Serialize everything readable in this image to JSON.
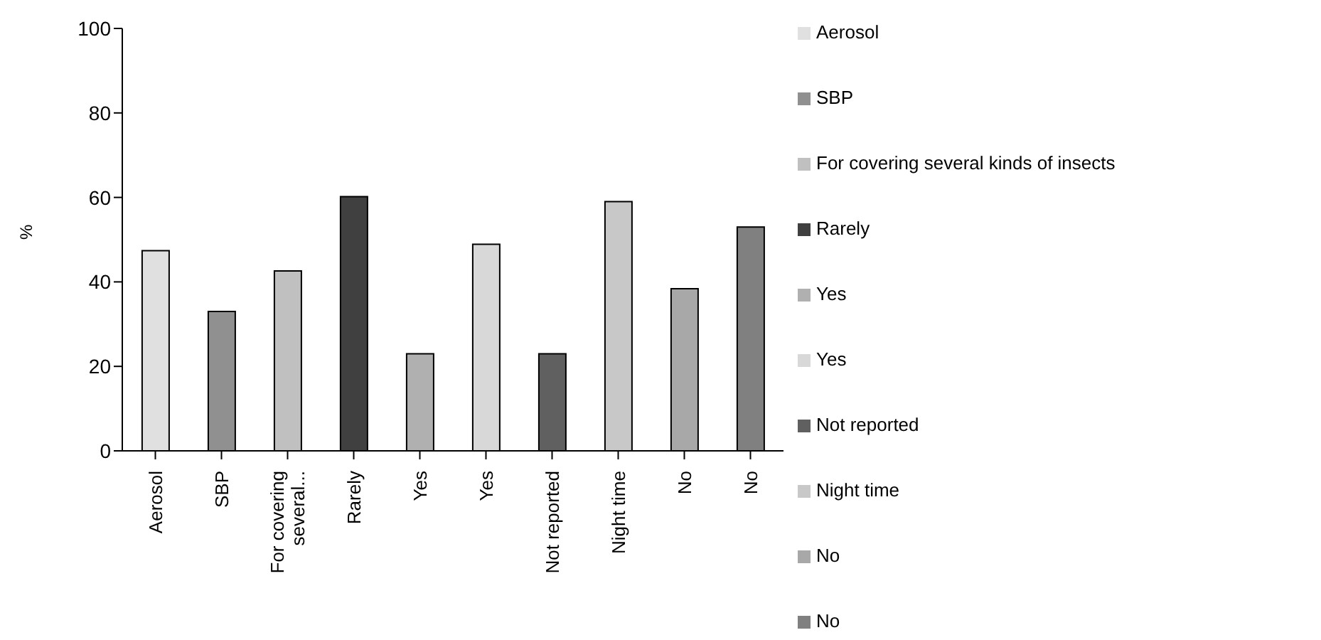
{
  "chart_data": {
    "type": "bar",
    "ylabel": "%",
    "categories": [
      "Aerosol",
      "SBP",
      "For covering several...",
      "Rarely",
      "Yes",
      "Yes",
      "Not reported",
      "Night time",
      "No",
      "No"
    ],
    "series": [
      {
        "name": "Aerosol",
        "color": "#e0e0e0",
        "values": [
          47.4,
          null,
          null,
          null,
          null,
          null,
          null,
          null,
          null,
          null
        ]
      },
      {
        "name": "SBP",
        "color": "#909090",
        "values": [
          null,
          33,
          null,
          null,
          null,
          null,
          null,
          null,
          null,
          null
        ]
      },
      {
        "name": "For covering several kinds of insects",
        "color": "#c0c0c0",
        "values": [
          null,
          null,
          42.6,
          null,
          null,
          null,
          null,
          null,
          null,
          null
        ]
      },
      {
        "name": "Rarely",
        "color": "#404040",
        "values": [
          null,
          null,
          null,
          60.2,
          null,
          null,
          null,
          null,
          null,
          null
        ]
      },
      {
        "name": "Yes",
        "color": "#b0b0b0",
        "values": [
          null,
          null,
          null,
          null,
          23,
          null,
          null,
          null,
          null,
          null
        ]
      },
      {
        "name": "Yes",
        "color": "#d8d8d8",
        "values": [
          null,
          null,
          null,
          null,
          null,
          48.9,
          null,
          null,
          null,
          null
        ]
      },
      {
        "name": "Not reported",
        "color": "#606060",
        "values": [
          null,
          null,
          null,
          null,
          null,
          null,
          23,
          null,
          null,
          null
        ]
      },
      {
        "name": "Night time",
        "color": "#c8c8c8",
        "values": [
          null,
          null,
          null,
          null,
          null,
          null,
          null,
          59,
          null,
          null
        ]
      },
      {
        "name": "No",
        "color": "#a8a8a8",
        "values": [
          null,
          null,
          null,
          null,
          null,
          null,
          null,
          null,
          38.4,
          null
        ]
      },
      {
        "name": "No",
        "color": "#808080",
        "values": [
          null,
          null,
          null,
          null,
          null,
          null,
          null,
          null,
          null,
          53
        ]
      }
    ],
    "ylim": [
      0,
      100
    ],
    "yticks": [
      0,
      20,
      40,
      60,
      80,
      100
    ],
    "grid": false,
    "legend": "right"
  }
}
